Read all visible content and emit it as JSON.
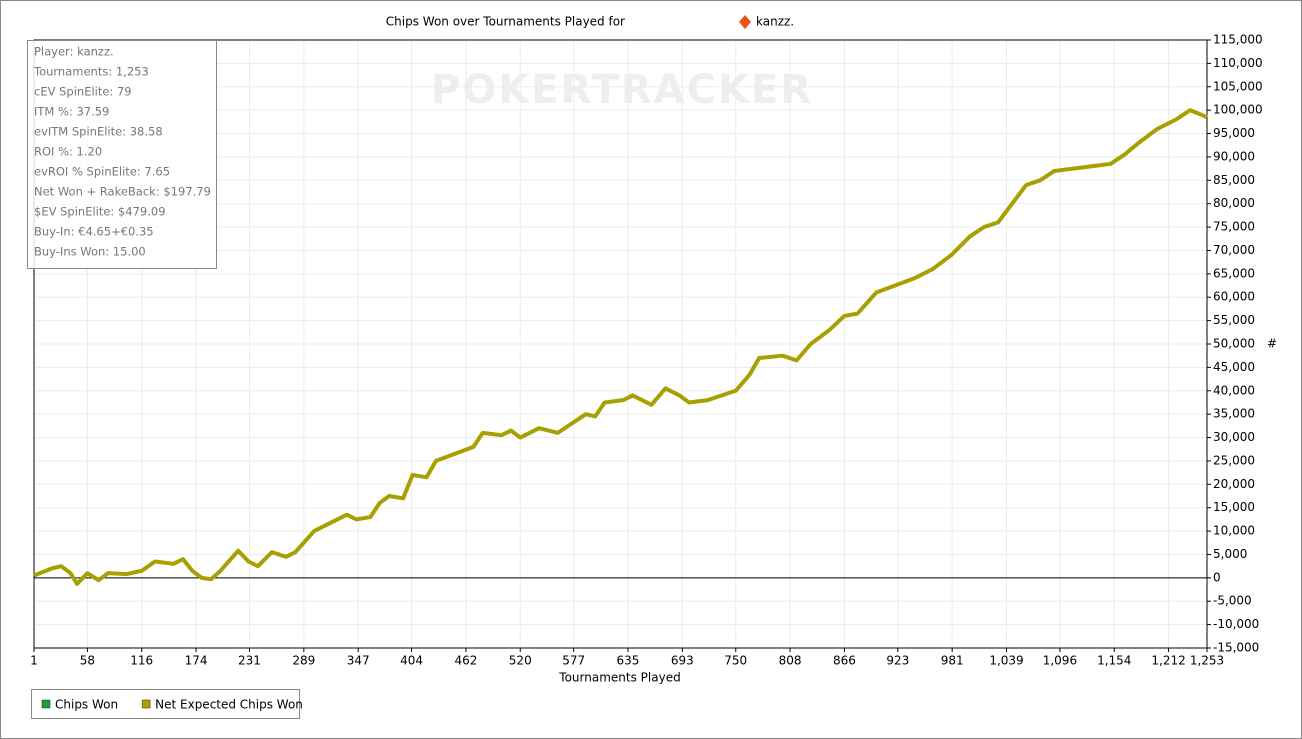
{
  "chart_data": {
    "type": "line",
    "title": "Chips Won over Tournaments Played for",
    "player": "kanzz.",
    "watermark": "POKERTRACKER",
    "x_label": "Tournaments Played",
    "y_label": "#",
    "stats": [
      "Player: kanzz.",
      "Tournaments: 1,253",
      "cEV SpinElite: 79",
      "ITM %: 37.59",
      "evITM SpinElite: 38.58",
      "ROI %: 1.20",
      "evROI % SpinElite: 7.65",
      "Net Won + RakeBack: $197.79",
      "$EV SpinElite: $479.09",
      "Buy-In: €4.65+€0.35",
      "Buy-Ins Won: 15.00"
    ],
    "grid": true,
    "xlim": [
      1,
      1253
    ],
    "xticks": [
      1,
      58,
      116,
      174,
      231,
      289,
      347,
      404,
      462,
      520,
      577,
      635,
      693,
      750,
      808,
      866,
      923,
      981,
      {
        "value": 1039,
        "label": "1,039"
      },
      {
        "value": 1096,
        "label": "1,096"
      },
      {
        "value": 1154,
        "label": "1,154"
      },
      {
        "value": 1212,
        "label": "1,212"
      },
      {
        "value": 1253,
        "label": "1,253"
      }
    ],
    "ylim": [
      -15000,
      115000
    ],
    "yticks": [
      {
        "value": -15000,
        "label": "-15,000"
      },
      {
        "value": -10000,
        "label": "-10,000"
      },
      {
        "value": -5000,
        "label": "-5,000"
      },
      0,
      {
        "value": 5000,
        "label": "5,000"
      },
      {
        "value": 10000,
        "label": "10,000"
      },
      {
        "value": 15000,
        "label": "15,000"
      },
      {
        "value": 20000,
        "label": "20,000"
      },
      {
        "value": 25000,
        "label": "25,000"
      },
      {
        "value": 30000,
        "label": "30,000"
      },
      {
        "value": 35000,
        "label": "35,000"
      },
      {
        "value": 40000,
        "label": "40,000"
      },
      {
        "value": 45000,
        "label": "45,000"
      },
      {
        "value": 50000,
        "label": "50,000"
      },
      {
        "value": 55000,
        "label": "55,000"
      },
      {
        "value": 60000,
        "label": "60,000"
      },
      {
        "value": 65000,
        "label": "65,000"
      },
      {
        "value": 70000,
        "label": "70,000"
      },
      {
        "value": 75000,
        "label": "75,000"
      },
      {
        "value": 80000,
        "label": "80,000"
      },
      {
        "value": 85000,
        "label": "85,000"
      },
      {
        "value": 90000,
        "label": "90,000"
      },
      {
        "value": 95000,
        "label": "95,000"
      },
      {
        "value": 100000,
        "label": "100,000"
      },
      {
        "value": 105000,
        "label": "105,000"
      },
      {
        "value": 110000,
        "label": "110,000"
      },
      {
        "value": 115000,
        "label": "115,000"
      }
    ],
    "x": [
      1,
      20,
      30,
      40,
      47,
      58,
      70,
      80,
      100,
      116,
      130,
      150,
      160,
      170,
      180,
      190,
      200,
      219,
      230,
      240,
      255,
      270,
      280,
      300,
      320,
      335,
      345,
      360,
      370,
      380,
      395,
      405,
      420,
      430,
      450,
      470,
      480,
      500,
      510,
      520,
      540,
      560,
      575,
      590,
      600,
      610,
      630,
      640,
      660,
      675,
      690,
      700,
      720,
      750,
      765,
      775,
      800,
      815,
      830,
      850,
      866,
      880,
      900,
      920,
      940,
      960,
      980,
      1000,
      1015,
      1030,
      1045,
      1060,
      1075,
      1090,
      1110,
      1130,
      1150,
      1165,
      1180,
      1200,
      1220,
      1235,
      1253
    ],
    "series": [
      {
        "name": "Chips Won",
        "color": "#1f9e2a",
        "values": [
          null,
          null,
          null,
          null,
          null,
          null,
          null,
          null,
          null,
          null,
          null,
          null,
          null,
          null,
          null,
          null,
          null,
          null,
          null,
          null,
          null,
          null,
          null,
          null,
          null,
          null,
          null,
          null,
          null,
          null,
          null,
          null,
          null,
          null,
          null,
          null,
          null,
          null,
          null,
          null,
          null,
          null,
          null,
          null,
          null,
          null,
          null,
          null,
          null,
          null,
          null,
          null,
          null,
          null,
          null,
          null,
          null,
          null,
          null,
          null,
          null,
          null,
          null,
          null,
          null,
          null,
          null,
          null,
          null,
          null,
          null,
          null,
          null,
          null,
          null,
          null,
          null,
          null,
          null,
          null,
          null,
          null,
          null
        ]
      },
      {
        "name": "Net Expected Chips Won",
        "color": "#a6a000",
        "values": [
          500,
          2000,
          2500,
          1000,
          -1300,
          1000,
          -500,
          1000,
          800,
          1500,
          3500,
          3000,
          4000,
          1500,
          0,
          -300,
          1500,
          5800,
          3500,
          2500,
          5500,
          4500,
          5500,
          10000,
          12000,
          13500,
          12500,
          13000,
          16000,
          17500,
          17000,
          22000,
          21500,
          25000,
          26500,
          28000,
          31000,
          30500,
          31500,
          30000,
          32000,
          31000,
          33000,
          35000,
          34500,
          37500,
          38000,
          39000,
          37000,
          40500,
          39000,
          37500,
          38000,
          40000,
          43500,
          47000,
          47500,
          46500,
          50000,
          53000,
          56000,
          56500,
          61000,
          62500,
          64000,
          66000,
          69000,
          73000,
          75000,
          76000,
          80000,
          84000,
          85000,
          87000,
          87500,
          88000,
          88500,
          90500,
          93000,
          96000,
          98000,
          100000,
          98500
        ]
      }
    ]
  }
}
